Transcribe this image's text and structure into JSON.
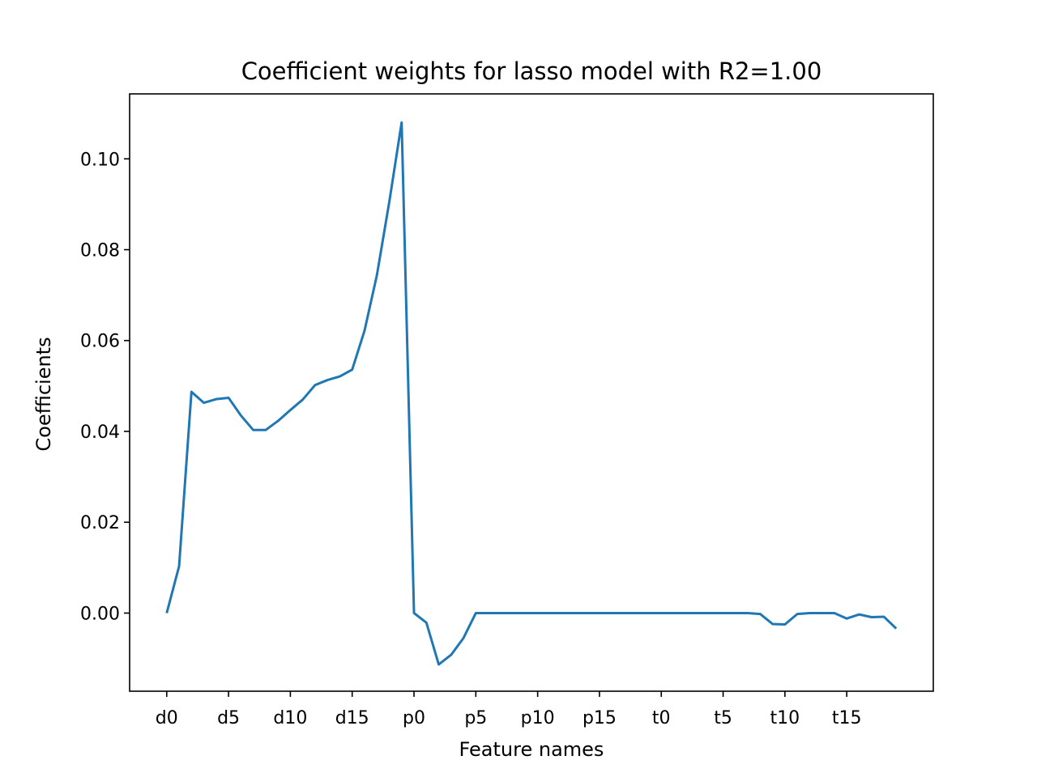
{
  "chart_data": {
    "type": "line",
    "title": "Coefficient weights for lasso model with R2=1.00",
    "xlabel": "Feature names",
    "ylabel": "Coefficients",
    "x_tick_labels": [
      "d0",
      "d5",
      "d10",
      "d15",
      "p0",
      "p5",
      "p10",
      "p15",
      "t0",
      "t5",
      "t10",
      "t15"
    ],
    "y_tick_labels": [
      "0.00",
      "0.02",
      "0.04",
      "0.06",
      "0.08",
      "0.10"
    ],
    "y_ticks": [
      0.0,
      0.02,
      0.04,
      0.06,
      0.08,
      0.1
    ],
    "xlim": [
      -3,
      62
    ],
    "ylim": [
      -0.0172,
      0.1143
    ],
    "grid": false,
    "series": [
      {
        "color": "#1f77b4",
        "x": [
          0,
          1,
          2,
          3,
          4,
          5,
          6,
          7,
          8,
          9,
          10,
          11,
          12,
          13,
          14,
          15,
          16,
          17,
          18,
          19,
          20,
          21,
          22,
          23,
          24,
          25,
          26,
          27,
          28,
          29,
          30,
          31,
          32,
          33,
          34,
          35,
          36,
          37,
          38,
          39,
          40,
          41,
          42,
          43,
          44,
          45,
          46,
          47,
          48,
          49,
          50,
          51,
          52,
          53,
          54,
          55,
          56,
          57,
          58,
          59
        ],
        "values": [
          0.0,
          0.0103,
          0.0487,
          0.0463,
          0.0471,
          0.0474,
          0.0435,
          0.0403,
          0.0403,
          0.0423,
          0.0447,
          0.047,
          0.0502,
          0.0513,
          0.0521,
          0.0536,
          0.0622,
          0.0744,
          0.0905,
          0.108,
          0.0,
          -0.0021,
          -0.0113,
          -0.0092,
          -0.0055,
          0.0,
          0.0,
          0.0,
          0.0,
          0.0,
          0.0,
          0.0,
          0.0,
          0.0,
          0.0,
          0.0,
          0.0,
          0.0,
          0.0,
          0.0,
          0.0,
          0.0,
          0.0,
          0.0,
          0.0,
          0.0,
          0.0,
          0.0,
          -0.0002,
          -0.0024,
          -0.0025,
          -0.0002,
          0.0,
          0.0,
          0.0,
          -0.0012,
          -0.0003,
          -0.0009,
          -0.0008,
          -0.0034
        ]
      }
    ]
  }
}
